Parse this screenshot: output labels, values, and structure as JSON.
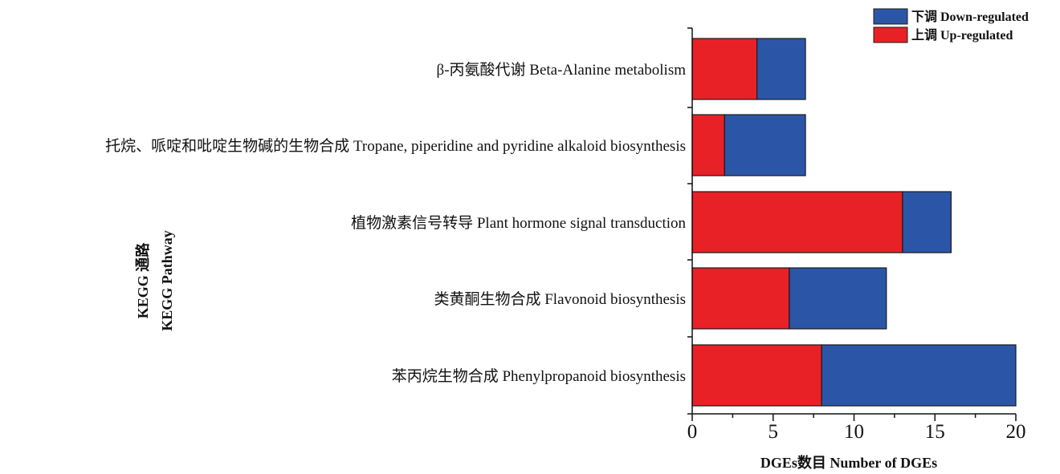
{
  "chart_data": {
    "type": "bar",
    "orientation": "horizontal",
    "stacked": true,
    "categories": [
      "β-丙氨酸代谢 Beta-Alanine metabolism",
      "托烷、哌啶和吡啶生物碱的生物合成 Tropane, piperidine and pyridine alkaloid biosynthesis",
      "植物激素信号转导 Plant hormone signal transduction",
      "类黄酮生物合成 Flavonoid biosynthesis",
      "苯丙烷生物合成 Phenylpropanoid biosynthesis"
    ],
    "series": [
      {
        "name": "上调 Up-regulated",
        "color": "#e82127",
        "values": [
          4,
          2,
          13,
          6,
          8
        ]
      },
      {
        "name": "下调 Down-regulated",
        "color": "#2b56a8",
        "values": [
          3,
          5,
          3,
          6,
          12
        ]
      }
    ],
    "legend_order": [
      1,
      0
    ],
    "xlabel": "DGEs数目  Number of DGEs",
    "ylabel_lines": [
      "KEGG 通路",
      "KEGG Pathway"
    ],
    "xlim": [
      0,
      20
    ],
    "xticks": [
      0,
      5,
      10,
      15,
      20
    ],
    "grid": false,
    "legend_position": "top-right"
  }
}
